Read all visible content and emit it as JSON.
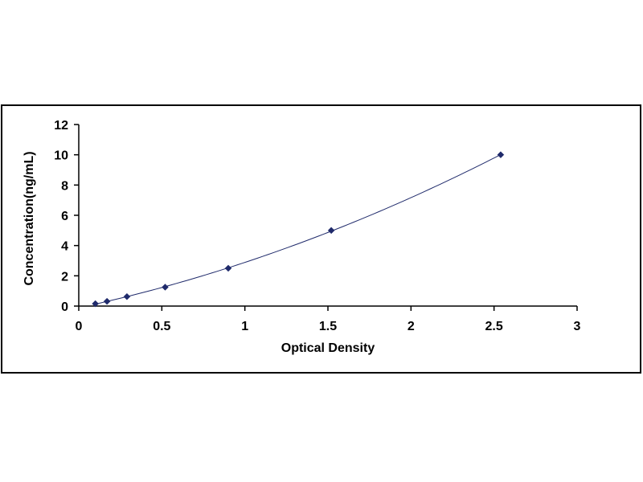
{
  "chart_data": {
    "type": "scatter",
    "title": "",
    "xlabel": "Optical Density",
    "ylabel": "Concentration(ng/mL)",
    "xlim": [
      0,
      3
    ],
    "ylim": [
      0,
      12
    ],
    "xticks": [
      0,
      0.5,
      1,
      1.5,
      2,
      2.5,
      3
    ],
    "yticks": [
      0,
      2,
      4,
      6,
      8,
      10,
      12
    ],
    "xtick_labels": [
      "0",
      "0.5",
      "1",
      "1.5",
      "2",
      "2.5",
      "3"
    ],
    "ytick_labels": [
      "0",
      "2",
      "4",
      "6",
      "8",
      "10",
      "12"
    ],
    "grid": false,
    "legend": "none",
    "trendline": "smooth curve through points",
    "series": [
      {
        "marker": "diamond",
        "color": "#1f2a6b",
        "points": [
          {
            "x": 0.1,
            "y": 0.156
          },
          {
            "x": 0.17,
            "y": 0.312
          },
          {
            "x": 0.29,
            "y": 0.625
          },
          {
            "x": 0.52,
            "y": 1.25
          },
          {
            "x": 0.9,
            "y": 2.5
          },
          {
            "x": 1.52,
            "y": 5
          },
          {
            "x": 2.54,
            "y": 10
          }
        ]
      }
    ],
    "line_color": "#1f2a6b",
    "axis_color": "#000000"
  }
}
